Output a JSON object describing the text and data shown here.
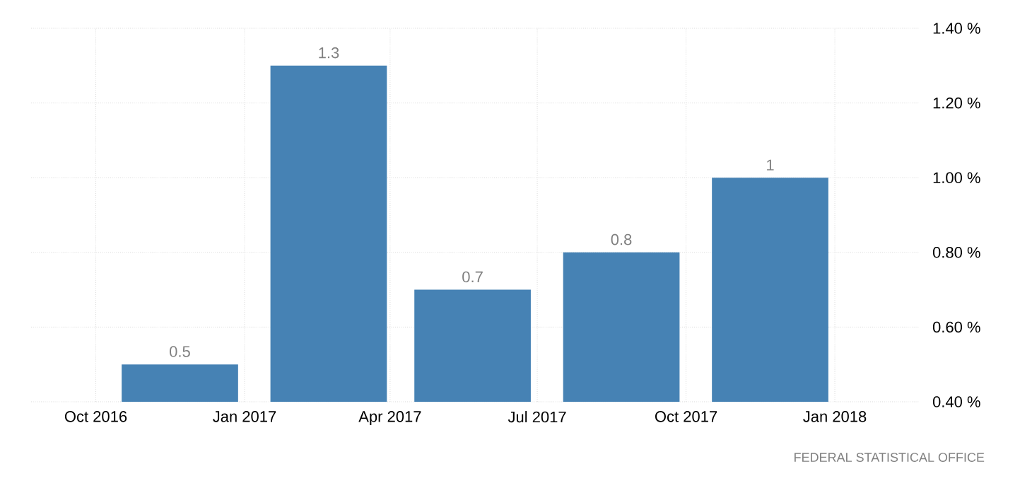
{
  "chart_data": {
    "type": "bar",
    "x": [
      "2016-11-22",
      "2017-02-22",
      "2017-05-22",
      "2017-08-22",
      "2017-11-22"
    ],
    "values": [
      0.5,
      1.3,
      0.7,
      0.8,
      1
    ],
    "color": "#4682b4",
    "data_labels": true,
    "xlim": [
      "2016-08-22",
      "2018-02-22"
    ],
    "xticks": [
      {
        "value": "2016-10-01",
        "label": "Oct 2016"
      },
      {
        "value": "2017-01-01",
        "label": "Jan 2017"
      },
      {
        "value": "2017-04-01",
        "label": "Apr 2017"
      },
      {
        "value": "2017-07-01",
        "label": "Jul 2017"
      },
      {
        "value": "2017-10-01",
        "label": "Oct 2017"
      },
      {
        "value": "2018-01-01",
        "label": "Jan 2018"
      }
    ],
    "ylim": [
      0.4,
      1.4
    ],
    "yticks": [
      {
        "value": 0.4,
        "label": "0.40 %"
      },
      {
        "value": 0.6,
        "label": "0.60 %"
      },
      {
        "value": 0.8,
        "label": "0.80 %"
      },
      {
        "value": 1.0,
        "label": "1.00 %"
      },
      {
        "value": 1.2,
        "label": "1.20 %"
      },
      {
        "value": 1.4,
        "label": "1.40 %"
      }
    ],
    "grid": true,
    "annotations": [
      "FEDERAL STATISTICAL OFFICE"
    ]
  }
}
